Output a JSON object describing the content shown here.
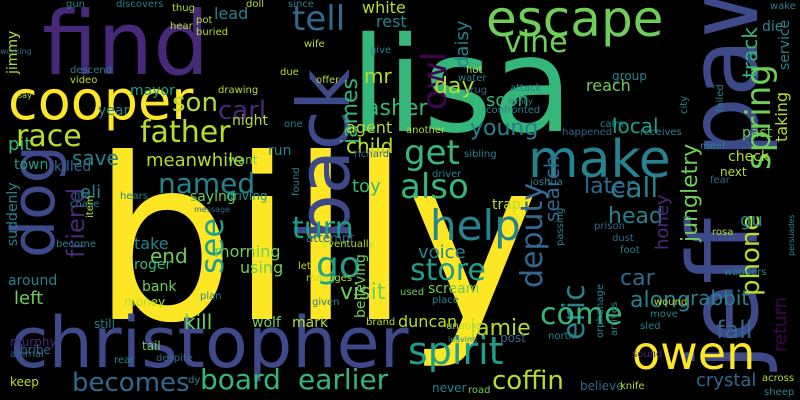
{
  "palette": {
    "background": "#000000",
    "yellow": "#fde725",
    "lime": "#b5de2b",
    "green": "#6ece58",
    "teal_green": "#35b779",
    "teal": "#1f9e89",
    "blue_teal": "#26828e",
    "blue": "#31688e",
    "indigo": "#3e4989",
    "purple": "#482878",
    "deep_purple": "#440154"
  },
  "words": {
    "billy": "billy",
    "lisa": "lisa",
    "jeff": "jeff",
    "paw": "paw",
    "christopher": "christopher",
    "find": "find",
    "back": "back",
    "cooper": "cooper",
    "escape": "escape",
    "dog": "dog",
    "make": "make",
    "owen": "owen",
    "spirit": "spirit",
    "father": "father",
    "help": "help",
    "tell": "tell",
    "spring": "spring",
    "race": "race",
    "carl": "carl",
    "get": "get",
    "vine": "vine",
    "named": "named",
    "also": "also",
    "go": "go",
    "see": "see",
    "turn": "turn",
    "store": "store",
    "deputy": "deputy",
    "eric": "eric",
    "call": "call",
    "later": "later",
    "come": "come",
    "phone": "phone",
    "coffin": "coffin",
    "becomes": "becomes",
    "board": "board",
    "earlier": "earlier",
    "friend": "friend",
    "james": "james",
    "owl": "owl",
    "son": "son",
    "jungletry": "jungletry",
    "return": "return",
    "take": "take",
    "end": "end",
    "kill": "kill",
    "jamie": "jamie",
    "fall": "fall",
    "along": "along",
    "rabbit": "rabbit",
    "car": "car",
    "visit": "visit",
    "young": "young",
    "day": "day",
    "soon": "soon",
    "voice": "voice",
    "asher": "asher",
    "mr": "mr",
    "child": "child",
    "toy": "toy",
    "save": "save",
    "meanwhile": "meanwhile",
    "local": "local",
    "search": "search",
    "head": "head",
    "honey": "honey",
    "track": "track",
    "left": "left",
    "around": "around",
    "eli": "eli",
    "pit": "pit",
    "suddenly": "suddenly",
    "town": "town",
    "killed": "killed",
    "jimmy": "jimmy",
    "mayor": "mayor",
    "year": "year",
    "night": "night",
    "agent": "agent",
    "daisy": "daisy",
    "rest": "rest",
    "white": "white",
    "lead": "lead",
    "using": "using",
    "morning": "morning",
    "roger": "roger",
    "bank": "bank",
    "wolf": "wolf",
    "mark": "mark",
    "duncan": "duncan",
    "scream": "scream",
    "believing": "believing",
    "crystal": "crystal",
    "taking": "taking",
    "reach": "reach",
    "check": "check",
    "past": "past",
    "next": "next",
    "gu": "gu",
    "service": "service",
    "die": "die",
    "wake": "wake",
    "trap": "trap",
    "attempt": "attempt",
    "run": "run",
    "saying": "saying",
    "driving": "driving",
    "want": "want",
    "money": "money",
    "still": "still",
    "tail": "tail",
    "murphy": "murphy",
    "keep": "keep",
    "bribe": "bribe",
    "animal": "animal",
    "rear": "rear",
    "despite": "despite",
    "never": "never",
    "road": "road",
    "believe": "believe",
    "knife": "knife",
    "sheep": "sheep",
    "across": "across",
    "wanders": "wanders",
    "wound": "wound",
    "move": "move",
    "sled": "sled",
    "sound": "sound",
    "dust": "dust",
    "prison": "prison",
    "rosa": "rosa",
    "fear": "fear",
    "meet": "meet",
    "receives": "receives",
    "calm": "calm",
    "happened": "happened",
    "another": "another",
    "group": "group",
    "water": "water",
    "drug": "drug",
    "attack": "attack",
    "confronted": "confronted",
    "hot": "hot",
    "family": "family",
    "offer": "offer",
    "give": "give",
    "since": "since",
    "wife": "wife",
    "due": "due",
    "doll": "doll",
    "discovers": "discovers",
    "thug": "thug",
    "buried": "buried",
    "pot": "pot",
    "hear": "hear",
    "gun": "gun",
    "working": "working",
    "descend": "descend",
    "video": "video",
    "say": "say",
    "drawing": "drawing",
    "one": "one",
    "fire": "fire",
    "chase": "chase",
    "hears": "hears",
    "item": "item",
    "become": "become",
    "message": "message",
    "plan": "plan",
    "given": "given",
    "manages": "manages",
    "let": "let",
    "eventually": "eventually",
    "brand": "brand",
    "unable": "unable",
    "used": "used",
    "place": "place",
    "post": "post",
    "north": "north",
    "leaving": "leaving",
    "driver": "driver",
    "joshua": "joshua",
    "sibling": "sibling",
    "passing": "passing",
    "richard": "richard",
    "found": "found",
    "arrives": "arrives",
    "orphanage": "orphanage",
    "foot": "foot",
    "city": "city",
    "failed": "failed",
    "persuades": "persuades",
    "dy": "dy"
  }
}
